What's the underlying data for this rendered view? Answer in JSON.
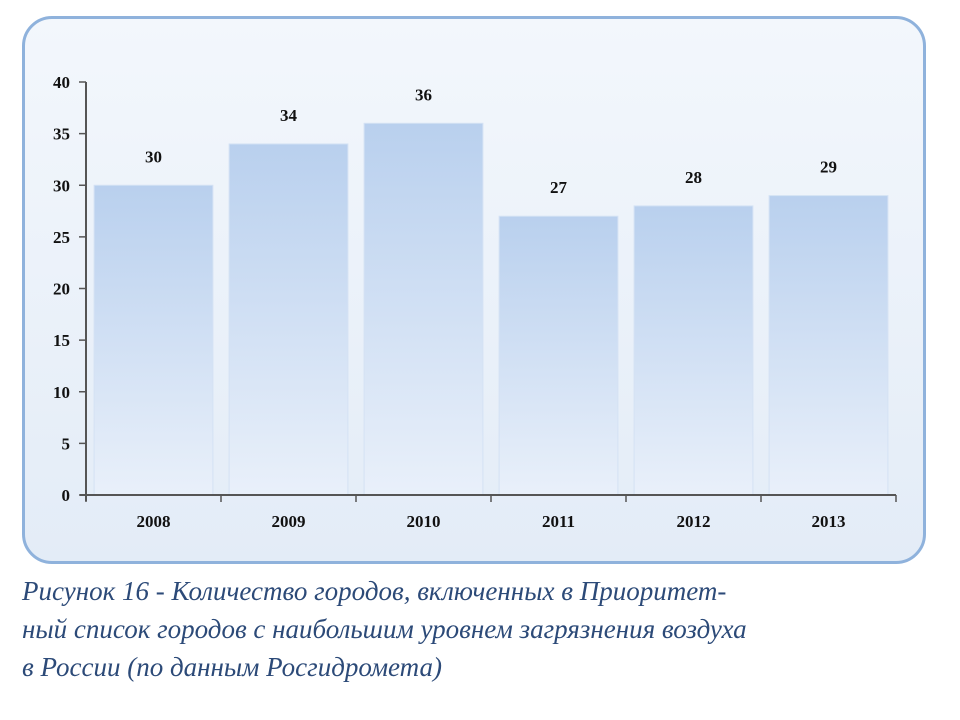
{
  "chart_data": {
    "type": "bar",
    "categories": [
      "2008",
      "2009",
      "2010",
      "2011",
      "2012",
      "2013"
    ],
    "values": [
      30,
      34,
      36,
      27,
      28,
      29
    ],
    "data_labels": [
      "30",
      "34",
      "36",
      "27",
      "28",
      "29"
    ],
    "ylim": [
      0,
      40
    ],
    "yticks": [
      "0",
      "5",
      "10",
      "15",
      "20",
      "25",
      "30",
      "35",
      "40"
    ],
    "xlabel": "",
    "ylabel": "",
    "grid": false,
    "legend": "none",
    "colors": {
      "bar_top": "#b9d0ee",
      "bar_bottom": "#e9f0fa",
      "axis": "#555555",
      "text": "#111111"
    }
  },
  "caption": {
    "line1": "Рисунок 16 - Количество городов, включенных в Приоритет-",
    "line2": "ный список городов с наибольшим уровнем загрязнения воздуха",
    "line3": "в России (по данным Росгидромета)",
    "color": "#2c4a78"
  }
}
